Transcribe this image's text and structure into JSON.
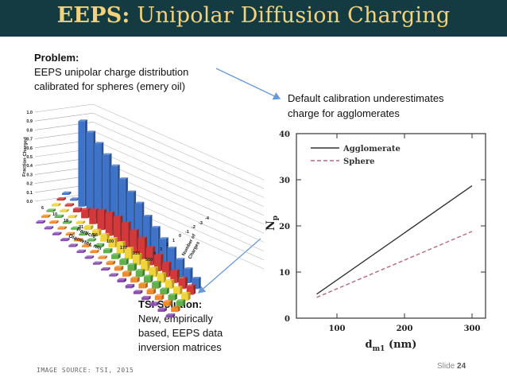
{
  "title": {
    "bold": "EEPS:",
    "rest": "Unipolar Diffusion Charging"
  },
  "problem": {
    "heading": "Problem:",
    "line1": "EEPS unipolar charge distribution",
    "line2": "calibrated for spheres (emery oil)"
  },
  "default_note": {
    "line1": "Default calibration underestimates",
    "line2": "charge for agglomerates"
  },
  "tsi": {
    "heading": "TSI Solution:",
    "line1": "New, empirically",
    "line2": "based, EEPS data",
    "line3": "inversion matrices"
  },
  "source": "IMAGE SOURCE: TSI, 2015",
  "slide": {
    "label": "Slide",
    "number": "24"
  },
  "colors": {
    "title_bg": "#153b42",
    "title_text": "#f2d27a",
    "arrow": "#6a9ad6",
    "agglomerate": "#333333",
    "sphere": "#b06a80"
  },
  "bar3d": {
    "z_axis_label": "Fraction Charged",
    "z_ticks": [
      "1.0",
      "0.9",
      "0.8",
      "0.7",
      "0.6",
      "0.5",
      "0.4",
      "0.3",
      "0.2",
      "0.1",
      "0.0"
    ],
    "x_axis_label_1": "Particle",
    "x_axis_label_2": "Diameter, nm",
    "x_ticks": [
      "6",
      "10",
      "18",
      "31",
      "56",
      "100",
      "177",
      "316",
      "560"
    ],
    "y_axis_label_1": "Number of",
    "y_axis_label_2": "Charges",
    "y_ticks": [
      "4",
      "3",
      "2",
      "1",
      "0",
      "-1",
      "-2",
      "-3",
      "-4"
    ]
  },
  "chart_data": {
    "type": "line",
    "title": "",
    "xlabel": "d_m1 (nm)",
    "ylabel": "N_p",
    "xlim": [
      40,
      320
    ],
    "ylim": [
      0,
      40
    ],
    "x_ticks": [
      "100",
      "200",
      "300"
    ],
    "y_ticks": [
      "0",
      "10",
      "20",
      "30",
      "40"
    ],
    "series": [
      {
        "name": "Agglomerate",
        "x": [
          70,
          300
        ],
        "y": [
          5.2,
          28.7
        ],
        "style": "solid"
      },
      {
        "name": "Sphere",
        "x": [
          70,
          300
        ],
        "y": [
          4.5,
          18.8
        ],
        "style": "dashed"
      }
    ]
  }
}
